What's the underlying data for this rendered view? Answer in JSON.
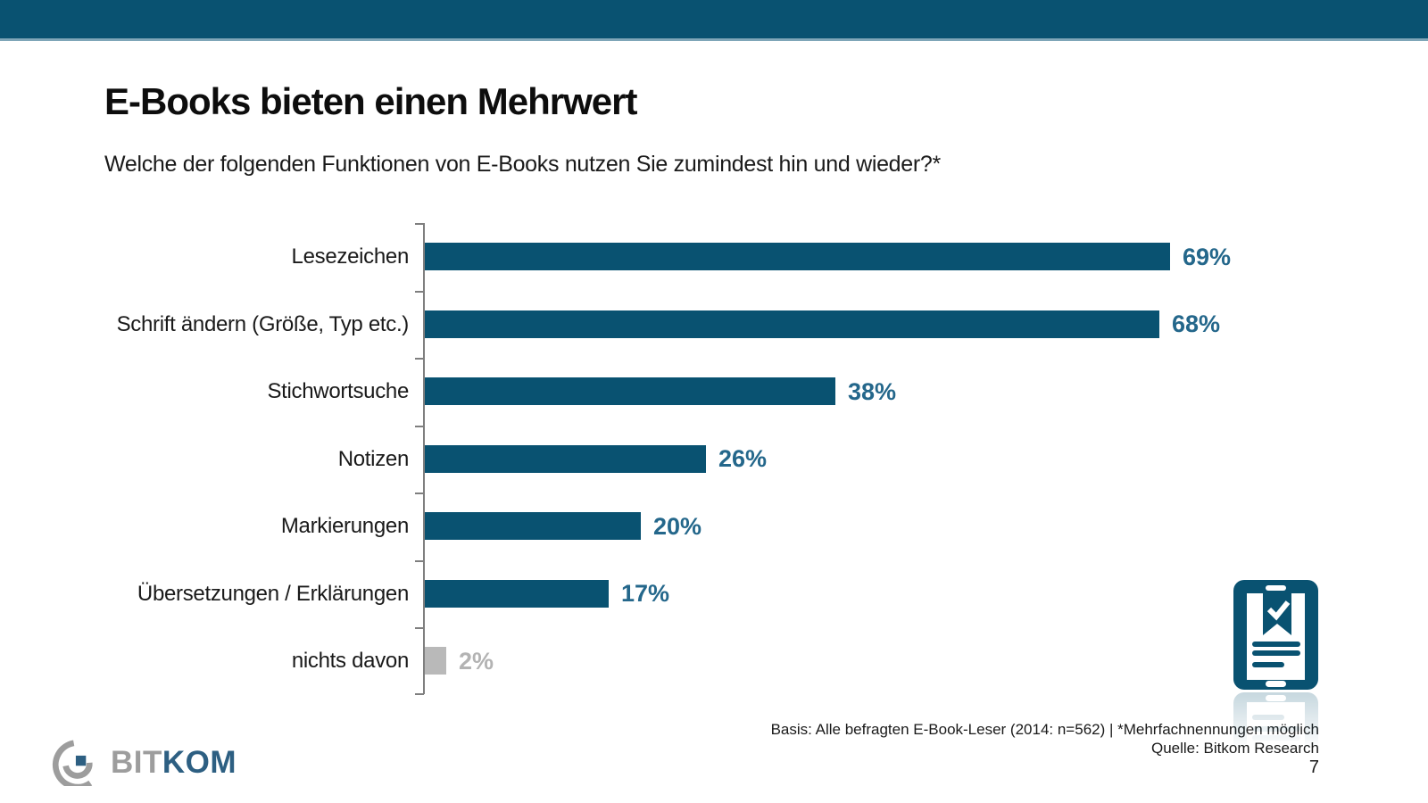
{
  "slide": {
    "title": "E-Books bieten einen Mehrwert",
    "subtitle": "Welche der folgenden Funktionen von E-Books nutzen Sie zumindest hin und wieder?*",
    "page_number": "7"
  },
  "chart_data": {
    "type": "bar",
    "orientation": "horizontal",
    "title": "E-Books bieten einen Mehrwert",
    "categories": [
      "Lesezeichen",
      "Schrift ändern (Größe, Typ etc.)",
      "Stichwortsuche",
      "Notizen",
      "Markierungen",
      "Übersetzungen / Erklärungen",
      "nichts davon"
    ],
    "values": [
      69,
      68,
      38,
      26,
      20,
      17,
      2
    ],
    "value_labels": [
      "69%",
      "68%",
      "38%",
      "26%",
      "20%",
      "17%",
      "2%"
    ],
    "unit": "%",
    "axis_range": [
      0,
      100
    ],
    "grid": false,
    "legend": false,
    "muted_category_index": 6
  },
  "footer": {
    "basis_line": "Basis: Alle befragten E-Book-Leser (2014: n=562) | *Mehrfachnennungen möglich",
    "source_line": "Quelle: Bitkom Research"
  },
  "logo": {
    "text_gray": "BIT",
    "text_blue": "KOM"
  },
  "icons": {
    "ebook_reader_icon": "tablet-with-bookmark-checkmark"
  },
  "colors": {
    "accent_teal": "#095271",
    "value_label_teal": "#24678b",
    "muted_bar_gray": "#b9b9b9",
    "muted_label_gray": "#b3b3b3",
    "axis_gray": "#7f7f7f",
    "logo_gray": "#9d9d9d",
    "logo_blue": "#2d5f82"
  }
}
